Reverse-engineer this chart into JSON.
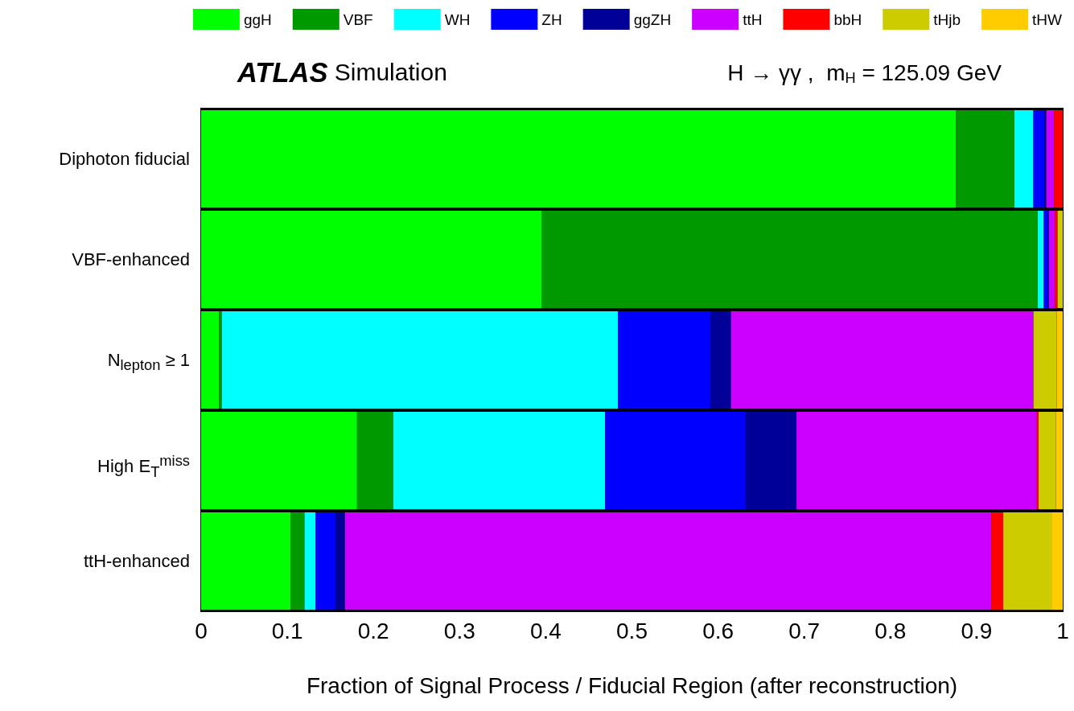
{
  "chart_data": {
    "type": "bar",
    "orientation": "horizontal",
    "stacked": true,
    "title": "ATLAS Simulation",
    "subtitle": "H → γγ ,  m$_{H}$ = 125.09 GeV",
    "xlabel": "Fraction of Signal Process / Fiducial Region (after reconstruction)",
    "categories": [
      "Diphoton fiducial",
      "VBF-enhanced",
      "N$_{lepton}$ ≥ 1",
      "High E$_{T}$$^{miss}$",
      "ttH-enhanced"
    ],
    "series": [
      {
        "name": "ggH",
        "color": "#00ff00",
        "values": [
          0.876,
          0.395,
          0.021,
          0.181,
          0.104
        ]
      },
      {
        "name": "VBF",
        "color": "#009900",
        "values": [
          0.068,
          0.576,
          0.003,
          0.042,
          0.016
        ]
      },
      {
        "name": "WH",
        "color": "#00ffff",
        "values": [
          0.022,
          0.007,
          0.46,
          0.246,
          0.013
        ]
      },
      {
        "name": "ZH",
        "color": "#0000ff",
        "values": [
          0.013,
          0.005,
          0.107,
          0.163,
          0.023
        ]
      },
      {
        "name": "ggZH",
        "color": "#000099",
        "values": [
          0.002,
          0.001,
          0.024,
          0.059,
          0.011
        ]
      },
      {
        "name": "ttH",
        "color": "#cc00ff",
        "values": [
          0.009,
          0.007,
          0.351,
          0.279,
          0.75
        ]
      },
      {
        "name": "bbH",
        "color": "#ff0000",
        "values": [
          0.01,
          0.003,
          0,
          0.002,
          0.014
        ]
      },
      {
        "name": "tHjb",
        "color": "#cccc00",
        "values": [
          0,
          0.006,
          0.027,
          0.02,
          0.056
        ]
      },
      {
        "name": "tHW",
        "color": "#ffcc00",
        "values": [
          0,
          0,
          0.007,
          0.008,
          0.013
        ]
      }
    ],
    "xlim": [
      0,
      1
    ],
    "xticks": [
      0,
      0.1,
      0.2,
      0.3,
      0.4,
      0.5,
      0.6,
      0.7,
      0.8,
      0.9,
      1
    ],
    "legend": "top",
    "grid": false
  }
}
